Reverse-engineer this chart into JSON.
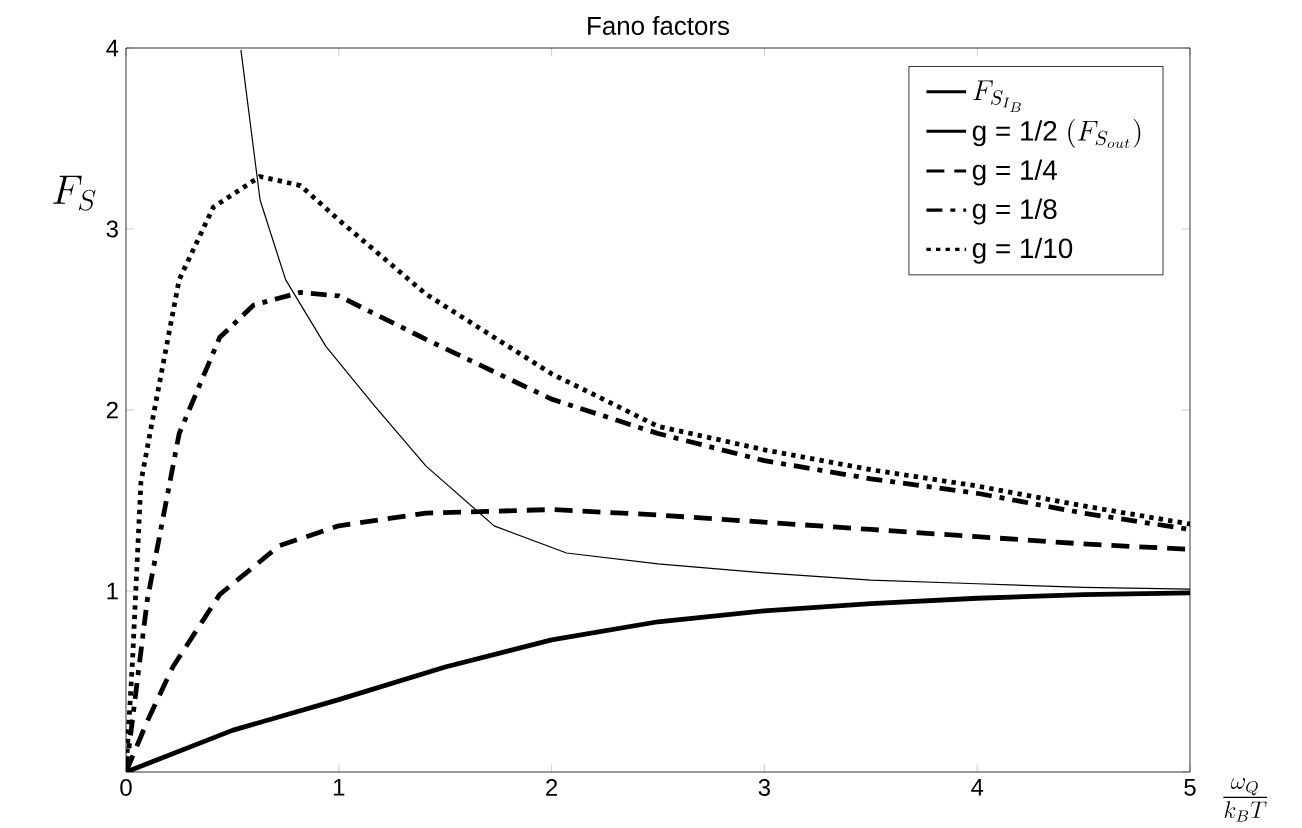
{
  "chart_data": {
    "type": "line",
    "title": "Fano factors",
    "xlabel": "\\frac{\\omega_Q}{k_B T}",
    "ylabel": "F_S",
    "xlim": [
      0,
      5
    ],
    "ylim": [
      0,
      4
    ],
    "xticks": [
      0,
      1,
      2,
      3,
      4,
      5
    ],
    "yticks": [
      {
        "value": 0,
        "label": null
      },
      1,
      2,
      3,
      4
    ],
    "grid": false,
    "legend": "top right",
    "marker": "none",
    "series": [
      {
        "name": "F_{S_{I_B}}",
        "color": "#000000",
        "line_style": "solid",
        "x": [
          0.54,
          0.63,
          0.75,
          0.94,
          1.17,
          1.41,
          1.73,
          2.07,
          2.5,
          3,
          3.5,
          4,
          4.5,
          5
        ],
        "values": [
          3.99,
          3.16,
          2.72,
          2.35,
          2.02,
          1.69,
          1.36,
          1.21,
          1.15,
          1.1,
          1.06,
          1.04,
          1.02,
          1.01
        ]
      },
      {
        "name": "\\text{g = 1/2 }(F_{S_{out}})",
        "color": "#000000",
        "line_style": "solid",
        "x": [
          0,
          0.5,
          1,
          1.5,
          2,
          2.5,
          3,
          3.5,
          4,
          4.5,
          5
        ],
        "values": [
          0,
          0.23,
          0.4,
          0.58,
          0.73,
          0.83,
          0.89,
          0.93,
          0.96,
          0.98,
          0.99
        ]
      },
      {
        "name": "\\text{g = 1/4}",
        "color": "#000000",
        "line_style": "dashed",
        "x": [
          0,
          0.1,
          0.22,
          0.44,
          0.72,
          1,
          1.41,
          2,
          2.5,
          3,
          3.5,
          4,
          4.5,
          5
        ],
        "values": [
          0,
          0.28,
          0.58,
          0.98,
          1.25,
          1.36,
          1.43,
          1.45,
          1.42,
          1.38,
          1.34,
          1.3,
          1.26,
          1.23
        ]
      },
      {
        "name": "\\text{g = 1/8}",
        "color": "#000000",
        "line_style": "dashdot",
        "x": [
          0,
          0.1,
          0.25,
          0.44,
          0.6,
          0.82,
          1,
          1.41,
          2,
          2.5,
          3,
          3.5,
          4,
          4.5,
          5
        ],
        "values": [
          0,
          0.95,
          1.87,
          2.4,
          2.58,
          2.65,
          2.63,
          2.39,
          2.06,
          1.87,
          1.72,
          1.62,
          1.54,
          1.43,
          1.34
        ]
      },
      {
        "name": "\\text{g = 1/10}",
        "color": "#000000",
        "line_style": "dotted",
        "x": [
          0,
          0.03,
          0.07,
          0.13,
          0.25,
          0.41,
          0.63,
          0.82,
          1,
          1.41,
          2,
          2.5,
          3,
          3.5,
          4,
          4.5,
          5
        ],
        "values": [
          0,
          0.6,
          1.6,
          1.98,
          2.72,
          3.12,
          3.29,
          3.24,
          3.05,
          2.64,
          2.2,
          1.91,
          1.78,
          1.67,
          1.58,
          1.47,
          1.37
        ]
      }
    ]
  }
}
